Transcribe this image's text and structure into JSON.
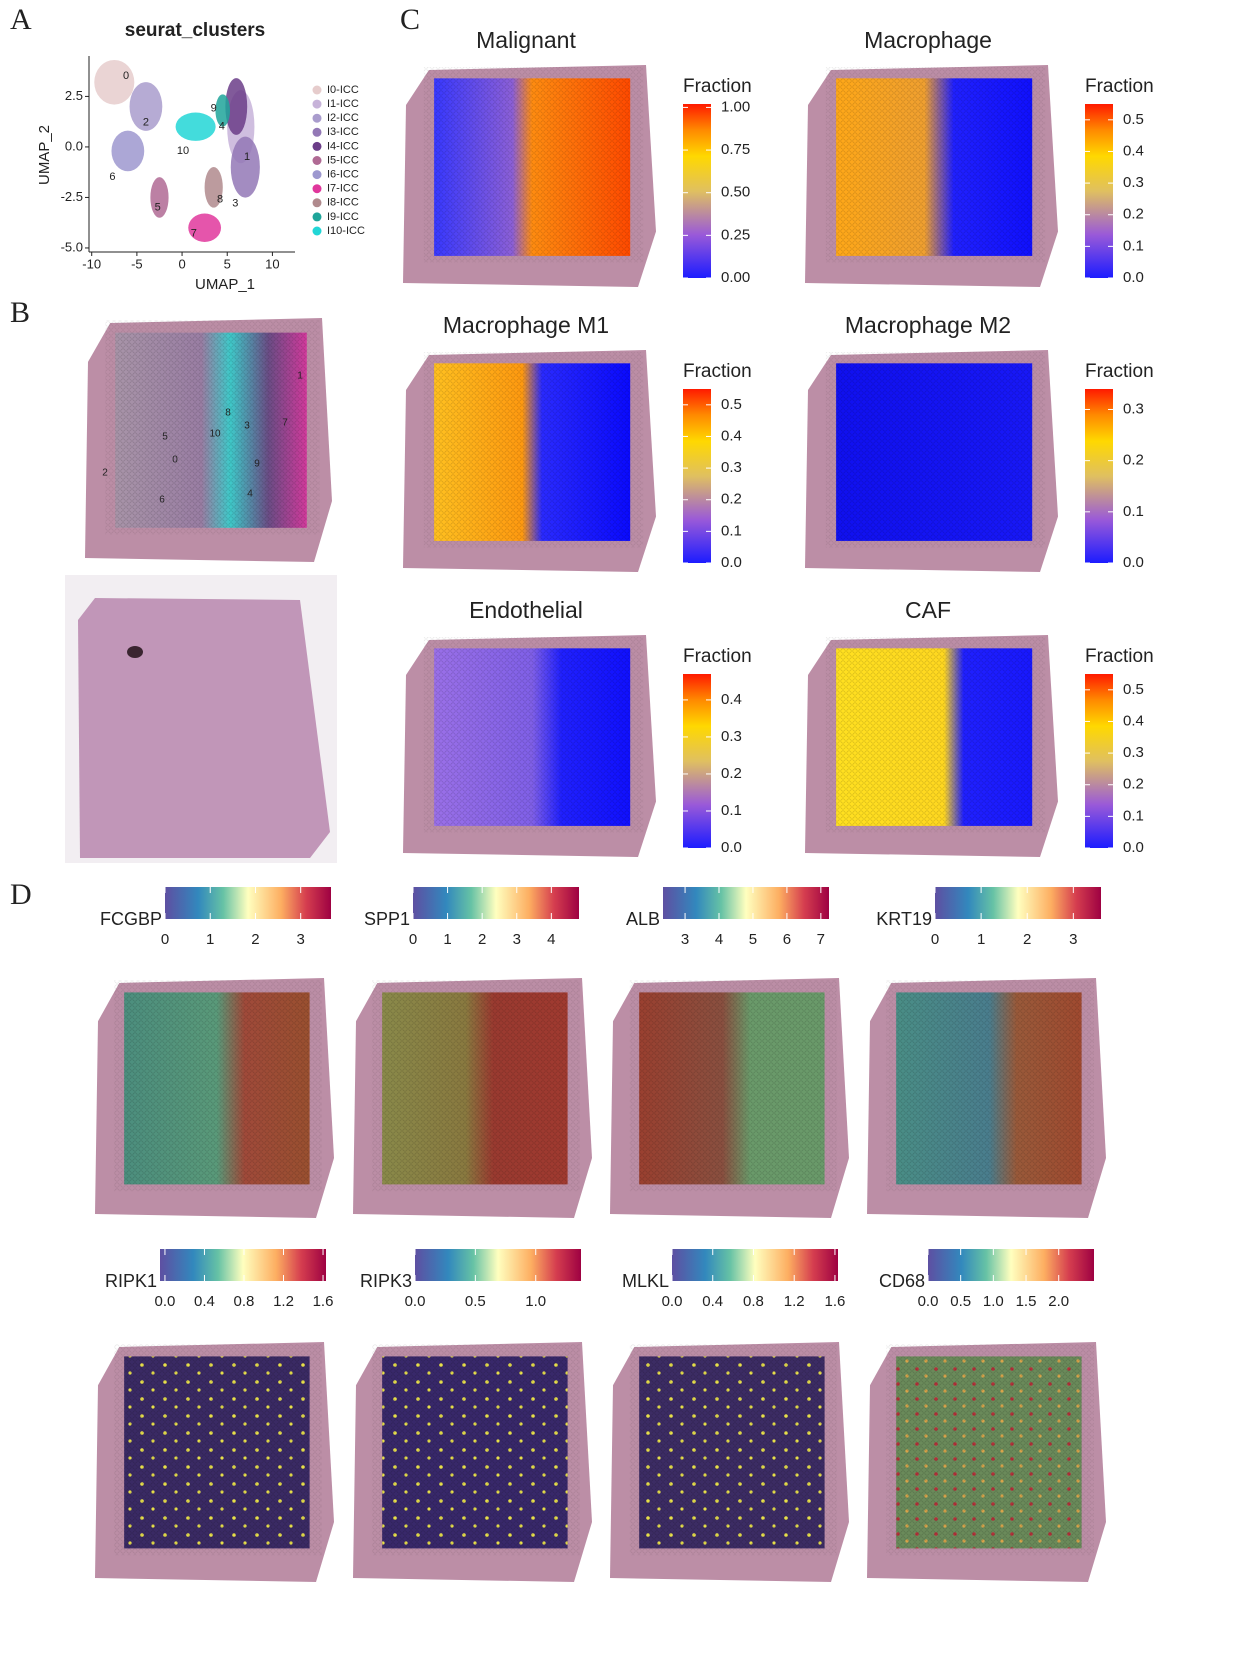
{
  "panel_labels": [
    "A",
    "B",
    "C",
    "D"
  ],
  "umap": {
    "title": "seurat_clusters",
    "x_label": "UMAP_1",
    "y_label": "UMAP_2",
    "xlim": [
      -10.3,
      12.5
    ],
    "ylim": [
      -5.2,
      4.5
    ],
    "xticks": [
      -10,
      -5,
      0,
      5,
      10
    ],
    "yticks": [
      {
        "value": -5,
        "label": "-5.0"
      },
      {
        "value": -2.5,
        "label": "-2.5"
      },
      {
        "value": 0,
        "label": "0.0"
      },
      {
        "value": 2.5,
        "label": "2.5"
      }
    ],
    "clusters": [
      {
        "name": "I0-ICC",
        "label": "0",
        "color": "#e6cccc"
      },
      {
        "name": "I1-ICC",
        "label": "1",
        "color": "#c7b3d9"
      },
      {
        "name": "I2-ICC",
        "label": "2",
        "color": "#a99ccd"
      },
      {
        "name": "I3-ICC",
        "label": "3",
        "color": "#9378b6"
      },
      {
        "name": "I4-ICC",
        "label": "4",
        "color": "#6b3d88"
      },
      {
        "name": "I5-ICC",
        "label": "5",
        "color": "#b06a94"
      },
      {
        "name": "I6-ICC",
        "label": "6",
        "color": "#9d98cf"
      },
      {
        "name": "I7-ICC",
        "label": "7",
        "color": "#e0379c"
      },
      {
        "name": "I8-ICC",
        "label": "8",
        "color": "#b08a8d"
      },
      {
        "name": "I9-ICC",
        "label": "9",
        "color": "#1fa59a"
      },
      {
        "name": "I10-ICC",
        "label": "10",
        "color": "#22d6d6"
      }
    ]
  },
  "fraction_panels": [
    {
      "title": "Malignant",
      "legend_title": "Fraction",
      "lim": [
        0,
        1.02
      ],
      "ticks": [
        {
          "value": 0,
          "label": "0.00"
        },
        {
          "value": 0.25,
          "label": "0.25"
        },
        {
          "value": 0.5,
          "label": "0.50"
        },
        {
          "value": 0.75,
          "label": "0.75"
        },
        {
          "value": 1,
          "label": "1.00"
        }
      ]
    },
    {
      "title": "Macrophage",
      "legend_title": "Fraction",
      "lim": [
        0,
        0.55
      ],
      "ticks": [
        {
          "value": 0,
          "label": "0.0"
        },
        0.1,
        0.2,
        0.3,
        0.4,
        0.5
      ]
    },
    {
      "title": "Macrophage M1",
      "legend_title": "Fraction",
      "lim": [
        0,
        0.55
      ],
      "ticks": [
        {
          "value": 0,
          "label": "0.0"
        },
        0.1,
        0.2,
        0.3,
        0.4,
        0.5
      ]
    },
    {
      "title": "Macrophage M2",
      "legend_title": "Fraction",
      "lim": [
        0,
        0.34
      ],
      "ticks": [
        {
          "value": 0,
          "label": "0.0"
        },
        0.1,
        0.2,
        0.3
      ]
    },
    {
      "title": "Endothelial",
      "legend_title": "Fraction",
      "lim": [
        0,
        0.47
      ],
      "ticks": [
        {
          "value": 0,
          "label": "0.0"
        },
        0.1,
        0.2,
        0.3,
        0.4
      ]
    },
    {
      "title": "CAF",
      "legend_title": "Fraction",
      "lim": [
        0,
        0.55
      ],
      "ticks": [
        {
          "value": 0,
          "label": "0.0"
        },
        0.1,
        0.2,
        0.3,
        0.4,
        0.5
      ]
    }
  ],
  "genes": [
    {
      "name": "FCGBP",
      "lim": [
        0,
        3.67
      ],
      "ticks": [
        0,
        1,
        2,
        3
      ]
    },
    {
      "name": "SPP1",
      "lim": [
        0,
        4.8
      ],
      "ticks": [
        0,
        1,
        2,
        3,
        4
      ]
    },
    {
      "name": "ALB",
      "lim": [
        2.35,
        7.24
      ],
      "ticks": [
        3,
        4,
        5,
        6,
        7
      ]
    },
    {
      "name": "KRT19",
      "lim": [
        0,
        3.6
      ],
      "ticks": [
        0,
        1,
        2,
        3
      ]
    },
    {
      "name": "RIPK1",
      "lim": [
        -0.05,
        1.63
      ],
      "ticks": [
        {
          "value": 0,
          "label": "0.0"
        },
        0.4,
        0.8,
        1.2,
        1.6
      ]
    },
    {
      "name": "RIPK3",
      "lim": [
        0,
        1.375
      ],
      "ticks": [
        {
          "value": 0,
          "label": "0.0"
        },
        0.5,
        {
          "value": 1,
          "label": "1.0"
        }
      ]
    },
    {
      "name": "MLKL",
      "lim": [
        0,
        1.63
      ],
      "ticks": [
        {
          "value": 0,
          "label": "0.0"
        },
        0.4,
        0.8,
        1.2,
        1.6
      ]
    },
    {
      "name": "CD68",
      "lim": [
        0,
        2.54
      ],
      "ticks": [
        {
          "value": 0,
          "label": "0.0"
        },
        0.5,
        {
          "value": 1,
          "label": "1.0"
        },
        1.5,
        {
          "value": 2,
          "label": "2.0"
        }
      ]
    }
  ]
}
